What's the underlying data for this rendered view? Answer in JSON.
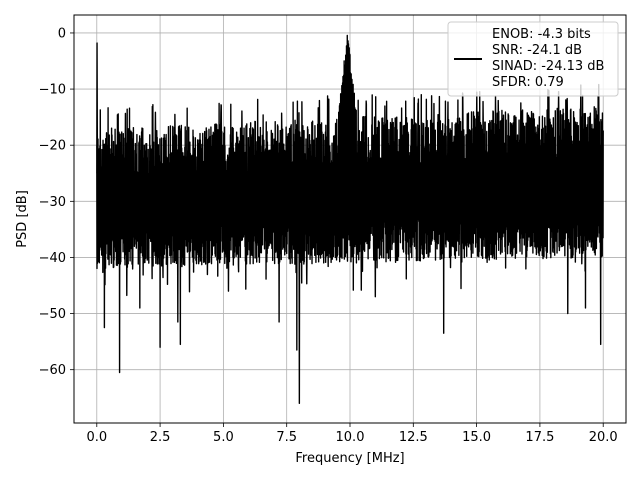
{
  "chart_data": {
    "type": "line",
    "title": "",
    "xlabel": "Frequency [MHz]",
    "ylabel": "PSD [dB]",
    "xlim": [
      -0.9,
      20.9
    ],
    "ylim": [
      -69.5,
      3.2
    ],
    "xticks": [
      0,
      2.5,
      5,
      7.5,
      10,
      12.5,
      15,
      17.5,
      20
    ],
    "xtick_labels": [
      "0.0",
      "2.5",
      "5.0",
      "7.5",
      "10.0",
      "12.5",
      "15.0",
      "17.5",
      "20.0"
    ],
    "yticks": [
      0,
      -10,
      -20,
      -30,
      -40,
      -50,
      -60
    ],
    "ytick_labels": [
      "0",
      "−10",
      "−20",
      "−30",
      "−40",
      "−50",
      "−60"
    ],
    "grid": true,
    "legend_position": "top-right",
    "line_color": "#000000",
    "series": [
      {
        "name": "ENOB: -4.3 bits\nSNR: -24.1 dB\nSINAD: -24.13 dB\nSFDR: 0.79",
        "legend_lines": [
          "ENOB: -4.3 bits",
          "SNR: -24.1 dB",
          "SINAD: -24.13 dB",
          "SFDR: 0.79"
        ],
        "description": "noise floor between about -15 dB and -45 dB with tone near 10 MHz",
        "x_range": [
          0,
          20
        ],
        "noise_upper_start": -16,
        "noise_upper_end": -12,
        "noise_lower_start": -38,
        "noise_lower_end": -36,
        "tone_freq": 9.9,
        "tone_peak": 0,
        "dc_peak": -1.8,
        "deep_dips": [
          {
            "x": 0.3,
            "y": -52.5
          },
          {
            "x": 0.9,
            "y": -60.5
          },
          {
            "x": 1.7,
            "y": -49
          },
          {
            "x": 2.5,
            "y": -56
          },
          {
            "x": 3.3,
            "y": -55.5
          },
          {
            "x": 3.2,
            "y": -51.5
          },
          {
            "x": 5.2,
            "y": -46
          },
          {
            "x": 7.2,
            "y": -51.5
          },
          {
            "x": 7.9,
            "y": -56.5
          },
          {
            "x": 8.0,
            "y": -66
          },
          {
            "x": 11.0,
            "y": -47
          },
          {
            "x": 13.7,
            "y": -53.5
          },
          {
            "x": 18.6,
            "y": -50
          },
          {
            "x": 19.9,
            "y": -55.5
          },
          {
            "x": 19.3,
            "y": -49
          }
        ]
      }
    ]
  }
}
